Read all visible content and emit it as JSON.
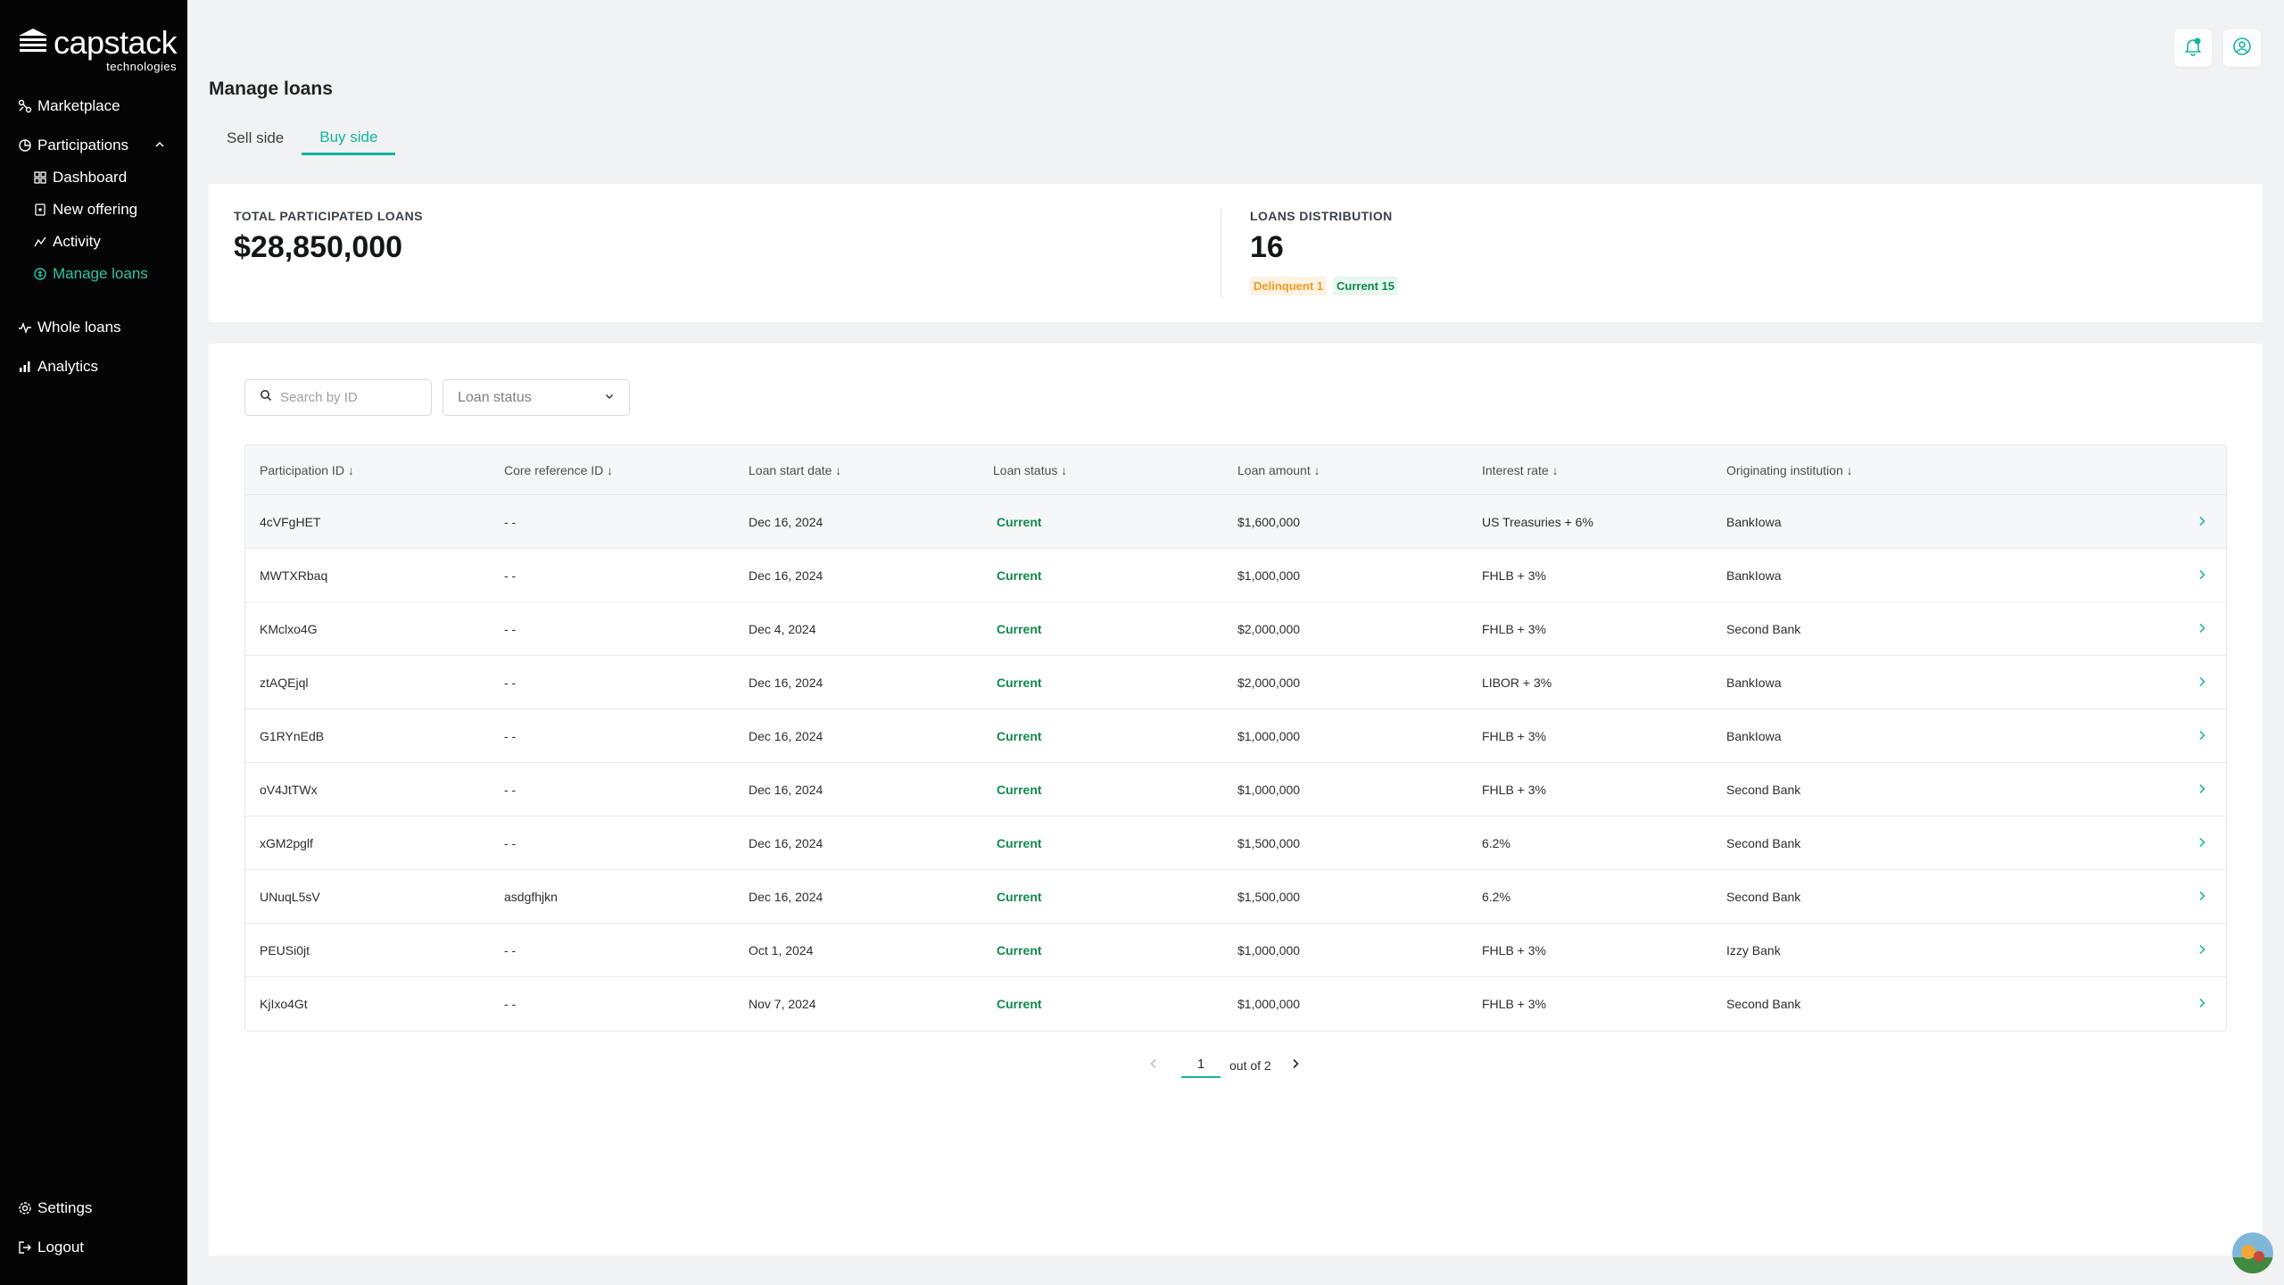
{
  "brand": {
    "name": "capstack",
    "sub": "technologies"
  },
  "sidebar": {
    "marketplace": "Marketplace",
    "participations": "Participations",
    "dashboard": "Dashboard",
    "new_offering": "New offering",
    "activity": "Activity",
    "manage_loans": "Manage loans",
    "whole_loans": "Whole loans",
    "analytics": "Analytics",
    "settings": "Settings",
    "logout": "Logout"
  },
  "page": {
    "title": "Manage loans",
    "tabs": [
      {
        "label": "Sell side",
        "active": false
      },
      {
        "label": "Buy side",
        "active": true
      }
    ]
  },
  "summary": {
    "total_label": "TOTAL PARTICIPATED LOANS",
    "total_value": "$28,850,000",
    "dist_label": "LOANS DISTRIBUTION",
    "dist_value": "16",
    "delinquent": "Delinquent 1",
    "current": "Current 15"
  },
  "filters": {
    "search_placeholder": "Search by ID",
    "status_placeholder": "Loan status"
  },
  "table": {
    "headers": [
      "Participation ID ↓",
      "Core reference ID ↓",
      "Loan start date ↓",
      "Loan status ↓",
      "Loan amount ↓",
      "Interest rate ↓",
      "Originating institution ↓"
    ],
    "rows": [
      [
        "4cVFgHET",
        "- -",
        "Dec 16, 2024",
        "Current",
        "$1,600,000",
        "US Treasuries + 6%",
        "BankIowa"
      ],
      [
        "MWTXRbaq",
        "- -",
        "Dec 16, 2024",
        "Current",
        "$1,000,000",
        "FHLB + 3%",
        "BankIowa"
      ],
      [
        "KMclxo4G",
        "- -",
        "Dec 4, 2024",
        "Current",
        "$2,000,000",
        "FHLB + 3%",
        "Second Bank"
      ],
      [
        "ztAQEjql",
        "- -",
        "Dec 16, 2024",
        "Current",
        "$2,000,000",
        "LIBOR + 3%",
        "BankIowa"
      ],
      [
        "G1RYnEdB",
        "- -",
        "Dec 16, 2024",
        "Current",
        "$1,000,000",
        "FHLB + 3%",
        "BankIowa"
      ],
      [
        "oV4JtTWx",
        "- -",
        "Dec 16, 2024",
        "Current",
        "$1,000,000",
        "FHLB + 3%",
        "Second Bank"
      ],
      [
        "xGM2pglf",
        "- -",
        "Dec 16, 2024",
        "Current",
        "$1,500,000",
        "6.2%",
        "Second Bank"
      ],
      [
        "UNuqL5sV",
        "asdgfhjkn",
        "Dec 16, 2024",
        "Current",
        "$1,500,000",
        "6.2%",
        "Second Bank"
      ],
      [
        "PEUSi0jt",
        "- -",
        "Oct 1, 2024",
        "Current",
        "$1,000,000",
        "FHLB + 3%",
        "Izzy Bank"
      ],
      [
        "KjIxo4Gt",
        "- -",
        "Nov 7, 2024",
        "Current",
        "$1,000,000",
        "FHLB + 3%",
        "Second Bank"
      ]
    ]
  },
  "pagination": {
    "current": "1",
    "of_label": "out of 2"
  },
  "icons": {
    "bell": "notification-bell-icon",
    "user": "user-circle-icon"
  },
  "colors": {
    "accent": "#13b3a1",
    "sidebar_bg": "#050505",
    "status_current": "#108a4e",
    "status_delinquent": "#f39b1c"
  }
}
